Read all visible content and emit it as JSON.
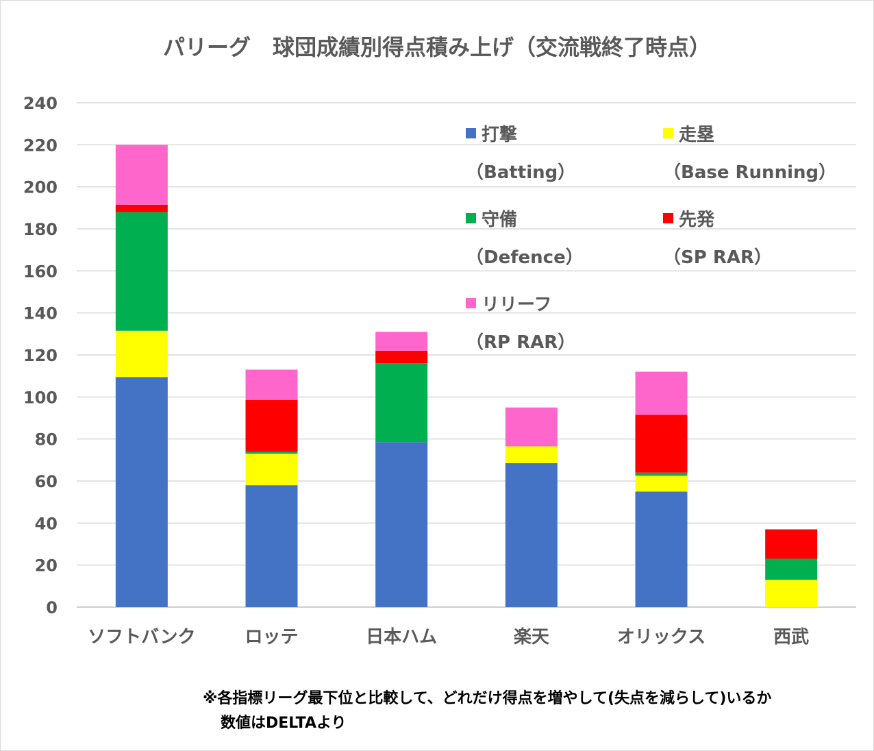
{
  "title": "パリーグ　球団成績別得点積み上げ（交流戦終了時点）",
  "chart_data": {
    "type": "bar",
    "stacked": true,
    "title": "パリーグ　球団成績別得点積み上げ（交流戦終了時点）",
    "categories": [
      "ソフトバンク",
      "ロッテ",
      "日本ハム",
      "楽天",
      "オリックス",
      "西武"
    ],
    "ylim": [
      0,
      240
    ],
    "yticks": [
      0,
      20,
      40,
      60,
      80,
      100,
      120,
      140,
      160,
      180,
      200,
      220,
      240
    ],
    "grid": true,
    "legend_position": "top-right",
    "series": [
      {
        "name": "打撃",
        "name_en": "（Batting）",
        "color": "#4472c4",
        "values": [
          109.5,
          58,
          78.5,
          68.5,
          55,
          0
        ]
      },
      {
        "name": "走塁",
        "name_en": "（Base Running）",
        "color": "#ffff00",
        "values": [
          22,
          15,
          0,
          8,
          7.5,
          13
        ]
      },
      {
        "name": "守備",
        "name_en": "（Defence）",
        "color": "#00b050",
        "values": [
          56.5,
          1,
          37.5,
          0,
          1.5,
          10
        ]
      },
      {
        "name": "先発",
        "name_en": "（SP RAR）",
        "color": "#ff0000",
        "values": [
          3.5,
          24.5,
          6,
          0,
          27.5,
          14
        ]
      },
      {
        "name": "リリーフ",
        "name_en": "（RP RAR）",
        "color": "#ff66cc",
        "values": [
          28.5,
          14.5,
          9,
          18.5,
          20.5,
          0
        ]
      }
    ]
  },
  "notes": {
    "line1": "※各指標リーグ最下位と比較して、どれだけ得点を増やして(失点を減らして)いるか",
    "line2": "数値はDELTAより"
  }
}
